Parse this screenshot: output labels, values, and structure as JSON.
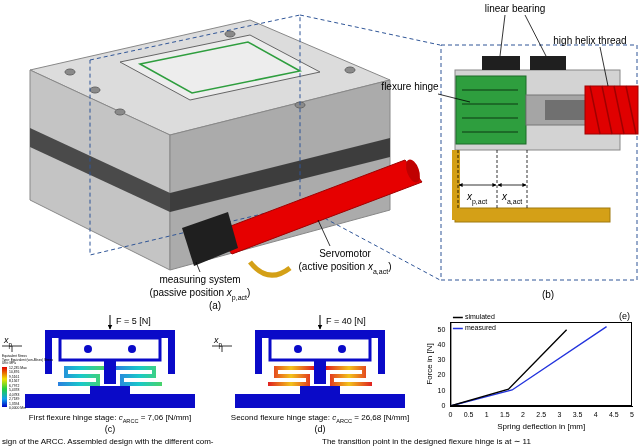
{
  "figure": {
    "panel_a": {
      "label": "(a)",
      "measuring_system": [
        [
          {
            "t": "measuring system"
          }
        ],
        [
          {
            "t": "(passive position "
          },
          {
            "t": "x",
            "sub": "p,act"
          },
          {
            "t": ")"
          }
        ]
      ],
      "servomotor": [
        [
          {
            "t": "Servomotor"
          }
        ],
        [
          {
            "t": "(active position "
          },
          {
            "t": "x",
            "sub": "a,act"
          },
          {
            "t": ")"
          }
        ]
      ]
    },
    "panel_b": {
      "label": "(b)",
      "linear_bearing": "linear bearing",
      "flexure_hinge": "flexure hinge",
      "high_helix_thread": "high helix thread",
      "x_passive": [
        {
          "t": "x",
          "sub": "p,act"
        }
      ],
      "x_active": [
        {
          "t": "x",
          "sub": "a,act"
        }
      ]
    },
    "panel_c": {
      "label": "(c)",
      "force": "F = 5 [N]",
      "axis": [
        {
          "t": "x",
          "sub": "p"
        }
      ],
      "caption": [
        {
          "t": "First flexure hinge stage: "
        },
        {
          "t": "c",
          "sub": "ARCC"
        },
        {
          "t": " = 7,06 [N/mm]"
        }
      ],
      "stress_legend": {
        "lines": [
          "Equivalent Stress",
          "Type: Equivalent (von-Mises) Stress",
          "Unit: MPa"
        ],
        "values": [
          "12,235 Max",
          "10,876",
          "9,5161",
          "8,1567",
          "6,7972",
          "5,4378",
          "4,0783",
          "2,7189",
          "1,3594",
          "0,0000 Min"
        ]
      }
    },
    "panel_d": {
      "label": "(d)",
      "force": "F = 40 [N]",
      "axis": [
        {
          "t": "x",
          "sub": "p"
        }
      ],
      "caption": [
        {
          "t": "Second flexure hinge stage: "
        },
        {
          "t": "c",
          "sub": "ARCC"
        },
        {
          "t": " = 26,68 [N/mm]"
        }
      ]
    },
    "panel_e": {
      "label": "(e)"
    },
    "footer": {
      "left": "sign of the ARCC. Assembled design with the different com-",
      "right": "The transition point in the designed flexure hinge is at ∼ 11"
    }
  },
  "chart_data": {
    "type": "line",
    "x_label": "Spring deflection in [mm]",
    "y_label": "Force in [N]",
    "series": [
      {
        "name": "simulated",
        "color": "#000000",
        "x": [
          0,
          1.6,
          3.2
        ],
        "values": [
          0,
          11,
          50
        ]
      },
      {
        "name": "measured",
        "color": "#2233dd",
        "x": [
          0,
          1.7,
          4.3
        ],
        "values": [
          0,
          10.5,
          52
        ]
      }
    ],
    "xlim": [
      0,
      5
    ],
    "xticks": [
      0,
      0.5,
      1,
      1.5,
      2,
      2.5,
      3,
      3.5,
      4,
      4.5,
      5
    ],
    "ylim": [
      0,
      55
    ],
    "yticks": [
      0,
      10,
      20,
      30,
      40,
      50
    ],
    "grid": false,
    "legend": "upper left"
  }
}
